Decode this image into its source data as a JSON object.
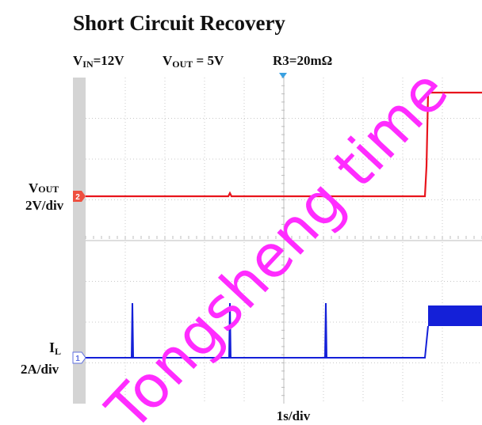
{
  "title": "Short Circuit Recovery",
  "conditions": [
    {
      "main": "V",
      "sub": "IN",
      "rest": "=12V"
    },
    {
      "main": "V",
      "sub": "OUT",
      "rest": " = 5V"
    },
    {
      "main": "R3=20mΩ"
    }
  ],
  "channels": [
    {
      "marker": "2",
      "name": {
        "main": "V",
        "sub": "OUT"
      },
      "scale": "2V/div"
    },
    {
      "marker": "1",
      "name": {
        "main": "I",
        "sub": "L"
      },
      "scale": "2A/div"
    }
  ],
  "timebase": "1s/div",
  "watermark": "Tongsheng time"
}
